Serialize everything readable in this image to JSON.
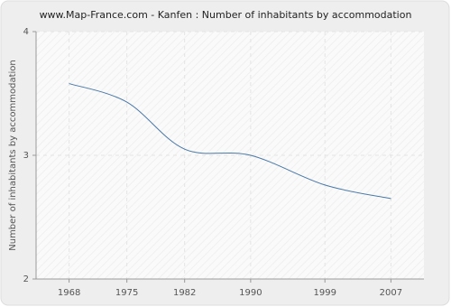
{
  "chart_data": {
    "type": "line",
    "title": "www.Map-France.com - Kanfen : Number of inhabitants by accommodation",
    "y_label": "Number of inhabitants by accommodation",
    "x": [
      1968,
      1975,
      1982,
      1990,
      1999,
      2007
    ],
    "series": [
      {
        "name": "Kanfen",
        "color": "#4a78a8",
        "values": [
          3.58,
          3.43,
          3.05,
          3.0,
          2.76,
          2.65
        ]
      }
    ],
    "xlim": [
      1964,
      2011
    ],
    "xticks": [
      1968,
      1975,
      1982,
      1990,
      1999,
      2007
    ],
    "ylim": [
      2,
      4
    ],
    "yticks": [
      2,
      3,
      4
    ],
    "grid": true
  }
}
